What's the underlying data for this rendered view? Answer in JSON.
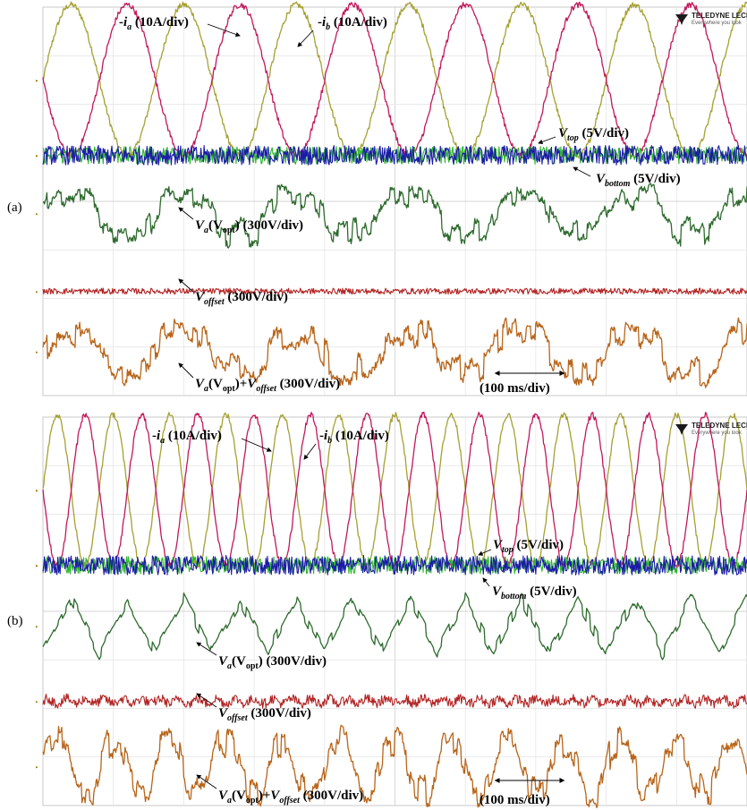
{
  "chart_data": [
    {
      "type": "line",
      "panel_label": "(a)",
      "brand": "TELEDYNE LECRO",
      "brand_sub": "Everywhere you look",
      "timebase_label": "(100 ms/div)",
      "series": [
        {
          "name": "-ia (10A/div)",
          "color": "#a6a032",
          "kind": "sine",
          "amplitude_div": 1.55,
          "period_div": 1.6,
          "phase": 0.0,
          "noise": 0.06,
          "center_div": 1.5
        },
        {
          "name": "-ib (10A/div)",
          "color": "#c2185b",
          "kind": "sine",
          "amplitude_div": 1.55,
          "period_div": 1.6,
          "phase": 3.1416,
          "noise": 0.06,
          "center_div": 1.5
        },
        {
          "name": "Vtop (5V/div)",
          "color": "#2db52d",
          "kind": "noise",
          "amplitude_div": 0.18,
          "center_div": 3.05
        },
        {
          "name": "Vbottom (5V/div)",
          "color": "#1a1aa8",
          "kind": "noise",
          "amplitude_div": 0.2,
          "center_div": 3.05
        },
        {
          "name": "Va(Vopt) (300V/div)",
          "color": "#2e6b2e",
          "kind": "opt",
          "amplitude_div": 0.45,
          "period_div": 1.6,
          "noise": 0.12,
          "center_div": 4.25
        },
        {
          "name": "Voffset (300V/div)",
          "color": "#b22222",
          "kind": "noise",
          "amplitude_div": 0.06,
          "center_div": 5.85
        },
        {
          "name": "Va(Vopt)+Voffset (300V/div)",
          "color": "#b8651a",
          "kind": "opt",
          "amplitude_div": 0.45,
          "period_div": 1.6,
          "noise": 0.14,
          "center_div": 7.1
        }
      ],
      "annotations": {
        "ia": {
          "prefix": "-",
          "sym": "i",
          "sub": "a",
          "suffix": " (10A/div)"
        },
        "ib": {
          "prefix": "-",
          "sym": "i",
          "sub": "b",
          "suffix": " (10A/div)"
        },
        "vtop": {
          "sym": "V",
          "sub": "top",
          "suffix": " (5V/div)"
        },
        "vbottom": {
          "sym": "V",
          "sub": "bottom",
          "suffix": " (5V/div)"
        },
        "va": {
          "sym": "V",
          "sub": "a",
          "mid": "(V",
          "mid_sub": "opt",
          "suffix": ") (300V/div)"
        },
        "voffset": {
          "sym": "V",
          "sub": "offset",
          "suffix": " (300V/div)"
        },
        "vsum": {
          "sym": "V",
          "sub": "a",
          "mid": "(V",
          "mid_sub": "opt",
          "mid2": ")+",
          "sym2": "V",
          "sub2": "offset",
          "suffix": " (300V/div)"
        }
      }
    },
    {
      "type": "line",
      "panel_label": "(b)",
      "brand": "TELEDYNE LECRO",
      "brand_sub": "Everywhere you look",
      "timebase_label": "(100 ms/div)",
      "series": [
        {
          "name": "-ia (10A/div)",
          "color": "#a6a032",
          "kind": "sine",
          "amplitude_div": 1.55,
          "period_div": 0.8,
          "phase": 0.0,
          "noise": 0.06,
          "center_div": 1.5
        },
        {
          "name": "-ib (10A/div)",
          "color": "#c2185b",
          "kind": "sine",
          "amplitude_div": 1.55,
          "period_div": 0.8,
          "phase": 3.1416,
          "noise": 0.06,
          "center_div": 1.5
        },
        {
          "name": "Vtop (5V/div)",
          "color": "#2db52d",
          "kind": "noise",
          "amplitude_div": 0.18,
          "center_div": 3.05
        },
        {
          "name": "Vbottom (5V/div)",
          "color": "#1a1aa8",
          "kind": "noise",
          "amplitude_div": 0.2,
          "center_div": 3.05
        },
        {
          "name": "Va(Vopt) (300V/div)",
          "color": "#2e6b2e",
          "kind": "tri",
          "amplitude_div": 0.55,
          "period_div": 0.8,
          "noise": 0.1,
          "center_div": 4.3
        },
        {
          "name": "Voffset (300V/div)",
          "color": "#b22222",
          "kind": "noise3",
          "amplitude_div": 0.1,
          "period_div": 0.8,
          "center_div": 5.85
        },
        {
          "name": "Va(Vopt)+Voffset (300V/div)",
          "color": "#b8651a",
          "kind": "trap",
          "amplitude_div": 0.5,
          "period_div": 0.8,
          "noise": 0.14,
          "center_div": 7.2
        }
      ],
      "annotations": {
        "ia": {
          "prefix": "-",
          "sym": "i",
          "sub": "a",
          "suffix": " (10A/div)"
        },
        "ib": {
          "prefix": "-",
          "sym": "i",
          "sub": "b",
          "suffix": " (10A/div)"
        },
        "vtop": {
          "sym": "V",
          "sub": "top",
          "suffix": " (5V/div)"
        },
        "vbottom": {
          "sym": "V",
          "sub": "bottom",
          "suffix": " (5V/div)"
        },
        "va": {
          "sym": "V",
          "sub": "a",
          "mid": "(V",
          "mid_sub": "opt",
          "suffix": ") (300V/div)"
        },
        "voffset": {
          "sym": "V",
          "sub": "offset",
          "suffix": " (300V/div)"
        },
        "vsum": {
          "sym": "V",
          "sub": "a",
          "mid": "(V",
          "mid_sub": "opt",
          "mid2": ")+",
          "sym2": "V",
          "sub2": "offset",
          "suffix": " (300V/div)"
        }
      }
    }
  ]
}
